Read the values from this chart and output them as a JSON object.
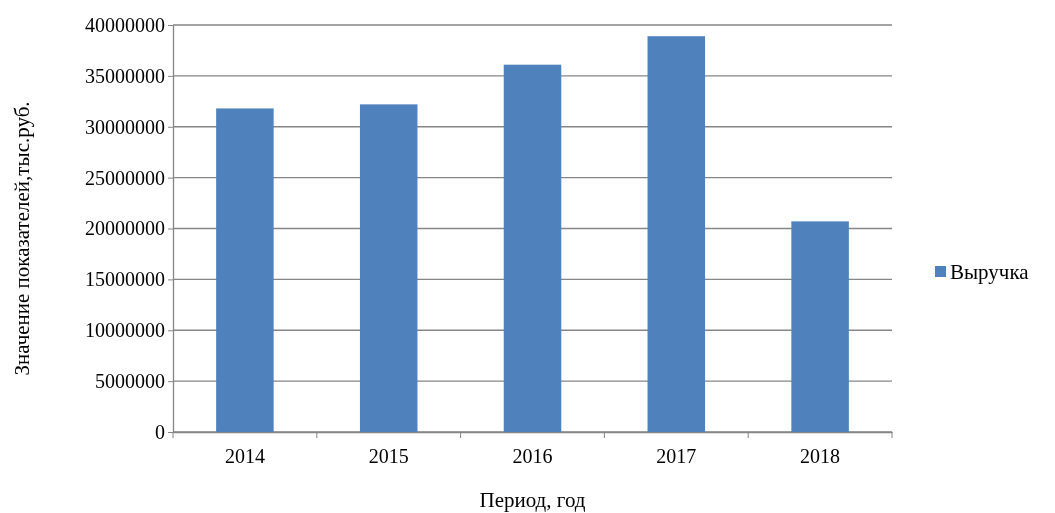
{
  "chart_data": {
    "type": "bar",
    "xlabel": "Период, год",
    "ylabel": "Значение показателей,тыс.руб.",
    "categories": [
      "2014",
      "2015",
      "2016",
      "2017",
      "2018"
    ],
    "series": [
      {
        "name": "Выручка",
        "color": "#4f81bd",
        "values": [
          31800000,
          32200000,
          36100000,
          38900000,
          20700000
        ]
      }
    ],
    "ylim": [
      0,
      40000000
    ],
    "yticks": [
      0,
      5000000,
      10000000,
      15000000,
      20000000,
      25000000,
      30000000,
      35000000,
      40000000
    ],
    "grid": "y",
    "legend": "right"
  }
}
